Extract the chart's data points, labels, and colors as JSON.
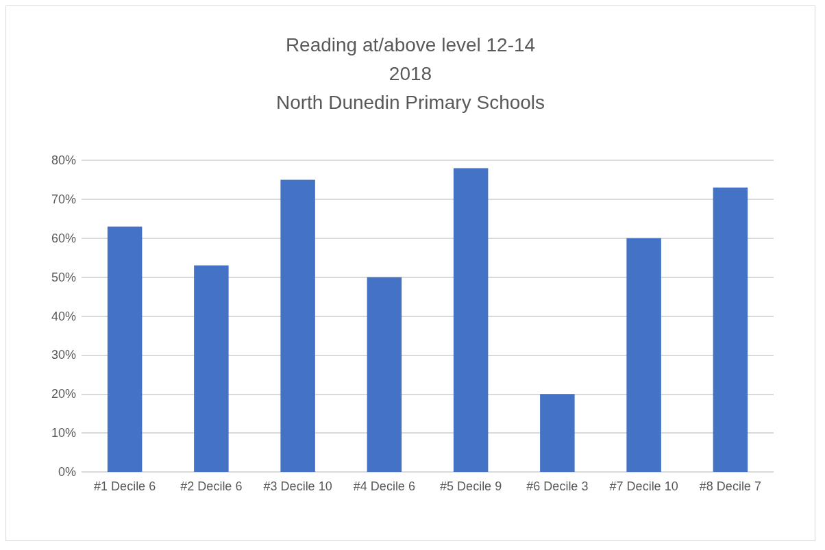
{
  "chart_data": {
    "type": "bar",
    "title": "Reading at/above level 12-14\n2018\nNorth Dunedin Primary Schools",
    "categories": [
      "#1 Decile 6",
      "#2 Decile 6",
      "#3 Decile 10",
      "#4 Decile 6",
      "#5 Decile 9",
      "#6 Decile 3",
      "#7 Decile 10",
      "#8 Decile 7"
    ],
    "values": [
      63,
      53,
      75,
      50,
      78,
      20,
      60,
      73
    ],
    "color": "#4472c4",
    "ylim": [
      0,
      80
    ],
    "yticks": [
      {
        "value": 0,
        "label": "0%"
      },
      {
        "value": 10,
        "label": "10%"
      },
      {
        "value": 20,
        "label": "20%"
      },
      {
        "value": 30,
        "label": "30%"
      },
      {
        "value": 40,
        "label": "40%"
      },
      {
        "value": 50,
        "label": "50%"
      },
      {
        "value": 60,
        "label": "60%"
      },
      {
        "value": 70,
        "label": "70%"
      },
      {
        "value": 80,
        "label": "80%"
      }
    ],
    "grid": true
  }
}
